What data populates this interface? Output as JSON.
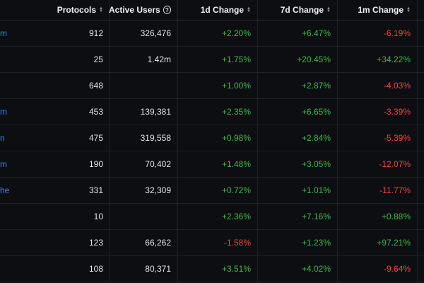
{
  "headers": {
    "protocols": "Protocols",
    "active_users": "Active Users",
    "d1": "1d Change",
    "d7": "7d Change",
    "m1": "1m Change",
    "help_icon": "?"
  },
  "rows": [
    {
      "name": "m",
      "protocols": "912",
      "users": "326,476",
      "d1": "+2.20%",
      "d7": "+6.47%",
      "m1": "-6.19%"
    },
    {
      "name": "",
      "protocols": "25",
      "users": "1.42m",
      "d1": "+1.75%",
      "d7": "+20.45%",
      "m1": "+34.22%"
    },
    {
      "name": "",
      "protocols": "648",
      "users": "",
      "d1": "+1.00%",
      "d7": "+2.87%",
      "m1": "-4.03%"
    },
    {
      "name": "m",
      "protocols": "453",
      "users": "139,381",
      "d1": "+2.35%",
      "d7": "+6.65%",
      "m1": "-3.39%"
    },
    {
      "name": "n",
      "protocols": "475",
      "users": "319,558",
      "d1": "+0.98%",
      "d7": "+2.84%",
      "m1": "-5.39%"
    },
    {
      "name": "m",
      "protocols": "190",
      "users": "70,402",
      "d1": "+1.48%",
      "d7": "+3.05%",
      "m1": "-12.07%"
    },
    {
      "name": "he",
      "protocols": "331",
      "users": "32,309",
      "d1": "+0.72%",
      "d7": "+1.01%",
      "m1": "-11.77%"
    },
    {
      "name": "",
      "protocols": "10",
      "users": "",
      "d1": "+2.36%",
      "d7": "+7.16%",
      "m1": "+0.88%"
    },
    {
      "name": "",
      "protocols": "123",
      "users": "66,262",
      "d1": "-1.58%",
      "d7": "+1.23%",
      "m1": "+97.21%"
    },
    {
      "name": "",
      "protocols": "108",
      "users": "80,371",
      "d1": "+3.51%",
      "d7": "+4.02%",
      "m1": "-9.64%"
    }
  ],
  "colors": {
    "background": "#0d0e11",
    "positive": "#3fb950",
    "negative": "#f04646",
    "link": "#3b82f6"
  }
}
